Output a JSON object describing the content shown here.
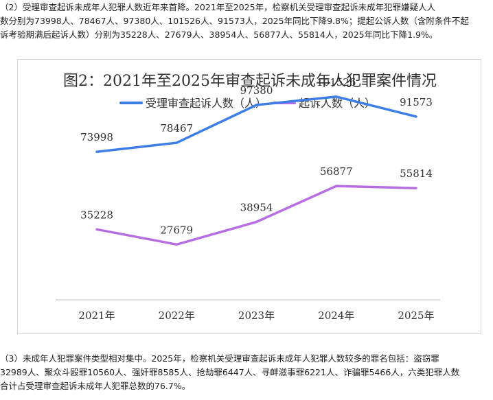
{
  "paragraph_2": {
    "lines": [
      "（2）受理审查起诉未成年人犯罪人数近年来首降。2021年至2025年，检察机关受理审查起诉未成年犯罪嫌疑人人",
      "数分别为73998人、78467人、97380人、101526人、91573人，2025年同比下降9.8%；提起公诉人数（含附条件不起",
      "诉考验期满后起诉人数）分别为35228人、27679人、38954人、56877人、55814人，2025年同比下降1.9%。"
    ]
  },
  "paragraph_3": {
    "lines": [
      "（3）未成年人犯罪案件类型相对集中。2025年，检察机关受理审查起诉未成年人犯罪人数较多的罪名包括：盗窃罪",
      "32989人、聚众斗殴罪10560人、强奸罪8585人、抢劫罪6447人、寻衅滋事罪6221人、诈骗罪5466人，六类犯罪人数",
      "合计占受理审查起诉未成年人犯罪总数的76.7%。"
    ]
  },
  "chart_data": {
    "type": "line",
    "title": "图2：2021年至2025年审查起诉未成年人犯罪案件情况",
    "categories": [
      "2021年",
      "2022年",
      "2023年",
      "2024年",
      "2025年"
    ],
    "series": [
      {
        "name": "受理审查起诉人数（人）",
        "values": [
          73998,
          78467,
          97380,
          101526,
          91573
        ],
        "color": "#3d7fe6"
      },
      {
        "name": "起诉人数（人）",
        "values": [
          35228,
          27679,
          38954,
          56877,
          55814
        ],
        "color": "#b86ee3"
      }
    ],
    "ylim": [
      0,
      120000
    ],
    "grid": false,
    "legend": "top-center",
    "axis_color": "#bfbfbf"
  }
}
